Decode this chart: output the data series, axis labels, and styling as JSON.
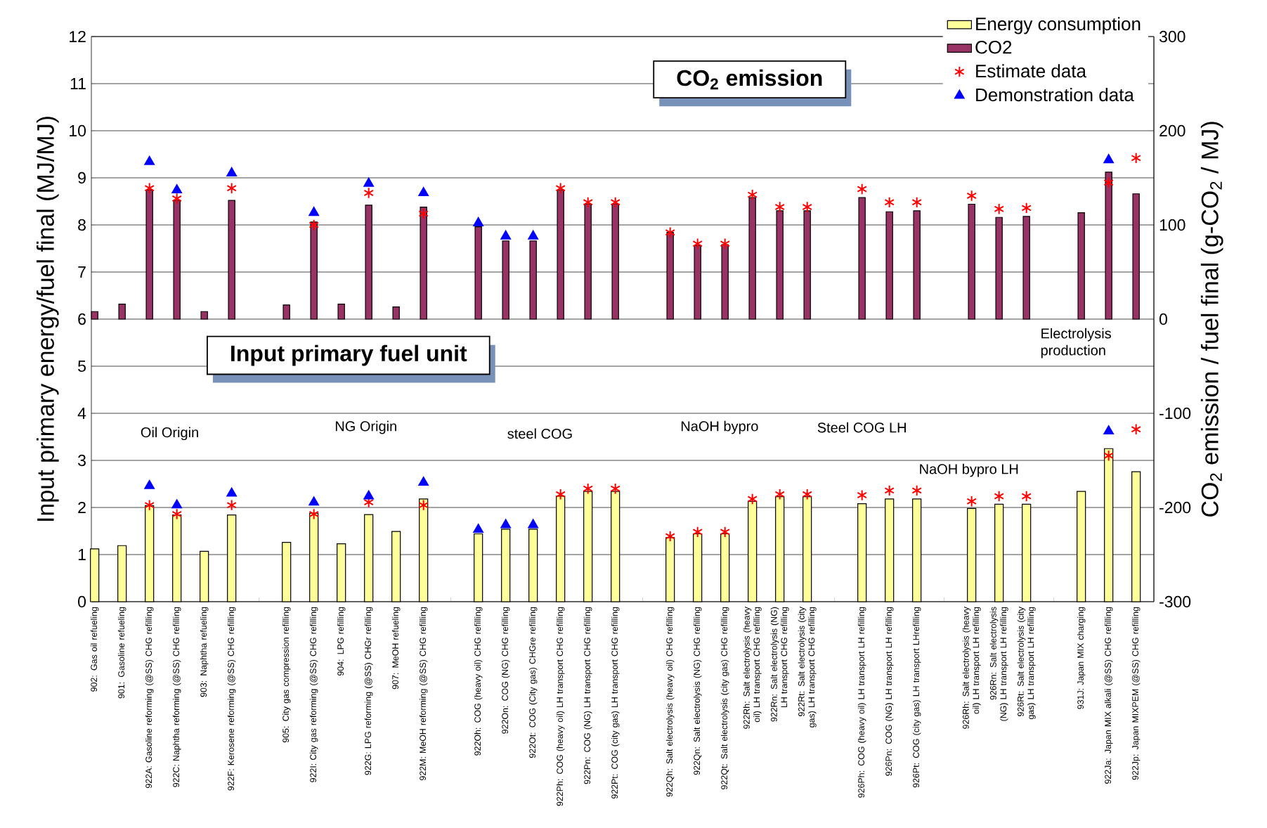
{
  "chart_data": {
    "type": "bar",
    "categories": [
      "902: Gas oil refueling",
      "901: Gasoline refueling",
      "922A: Gasoline reforming (@SS) CHG refilling",
      "922C: Naphtha reforming (@SS) CHG refilling",
      "903: Naphtha refueling",
      "922F: Kerosene reforming (@SS) CHG refilling",
      null,
      "905: City gas compression refilling",
      "922I: City gas reforming (@SS) CHG refilling",
      "904: LPG refilling",
      "922G: LPG reforming (@SS) CHGr refilling",
      "907: MeOH refueling",
      "922M: MeOH reforming (@SS) CHG refilling",
      null,
      "922Oh: COG (heavy oil) CHG refilling",
      "922On: COG (NG) CHG refilling",
      "922Ot: COG (City gas) CHGre refilling",
      "922Ph: COG (heavy oil) LH transport CHG refilling",
      "922Pn: COG (NG) LH transport CHG refilling",
      "922Pt: COG (city gas) LH transport CHG refilling",
      null,
      "922Qh: Salt electrolysis (heavy oil) CHG refilling",
      "922Qn: Salt electrolysis (NG) CHG refilling",
      "922Qt: Salt electrolysis (city gas) CHG refilling",
      "922Rh: Salt electrolysis (heavy oil) LH transport CHG refilling",
      "922Rn: Salt electrolysis (NG) LH transport CHG refilling",
      "922Rt: Salt electrolysis (city gas) LH transport CHG refilling",
      null,
      "926Ph: COG (heavy oil) LH transport LH refilling",
      "926Pn: COG (NG) LH transport LH refilling",
      "926Pt: COG (city gas) LH transport LHrefilling",
      null,
      "926Rh: Salt electrolysis (heavy oil) LH transport LH refilling",
      "926Rn: Salt electrolysis (NG) LH transport LH refilling",
      "926Rt: Salt electrolysis (city gas) LH transport LH refilling",
      null,
      "931J: Japan MIX charging",
      "922Ja: Japan MIX alkali (@SS) CHG refilling",
      "922Jp: Japan MIXPEM (@SS) CHG refilling"
    ],
    "series": [
      {
        "name": "Energy consumption",
        "color": "#ffff99",
        "values": [
          1.12,
          1.19,
          2.04,
          1.84,
          1.07,
          1.84,
          null,
          1.26,
          1.88,
          1.23,
          1.85,
          1.49,
          2.18,
          null,
          1.44,
          1.54,
          1.54,
          2.24,
          2.34,
          2.34,
          null,
          1.36,
          1.44,
          1.44,
          2.13,
          2.23,
          2.23,
          null,
          2.08,
          2.18,
          2.18,
          null,
          1.98,
          2.07,
          2.07,
          null,
          2.34,
          3.25,
          2.76
        ]
      },
      {
        "name": "CO2",
        "axis": "y2",
        "color": "#993366",
        "values": [
          8,
          16,
          137,
          126,
          8,
          126,
          null,
          15,
          103,
          16,
          121,
          13,
          119,
          null,
          98,
          83,
          83,
          137,
          122,
          122,
          null,
          92,
          78,
          79,
          129,
          115,
          115,
          null,
          129,
          114,
          115,
          null,
          122,
          108,
          109,
          null,
          113,
          156,
          133
        ]
      },
      {
        "name": "Estimate data",
        "type": "scatter",
        "marker": "cross",
        "color": "#ff0000",
        "values": [
          null,
          null,
          2.05,
          1.86,
          null,
          2.05,
          null,
          null,
          1.86,
          null,
          2.11,
          null,
          2.05,
          null,
          null,
          null,
          null,
          2.28,
          2.4,
          2.4,
          null,
          1.39,
          1.48,
          1.48,
          2.18,
          2.28,
          2.28,
          null,
          2.26,
          2.36,
          2.36,
          null,
          2.13,
          2.24,
          2.24,
          null,
          null,
          3.1,
          3.66
        ]
      },
      {
        "name": "Demonstration data",
        "type": "scatter",
        "marker": "triangle",
        "color": "#0000ff",
        "values": [
          null,
          null,
          2.46,
          2.05,
          null,
          2.3,
          null,
          null,
          2.11,
          null,
          2.24,
          null,
          2.53,
          null,
          1.53,
          1.63,
          1.63,
          null,
          null,
          null,
          null,
          null,
          null,
          null,
          null,
          null,
          null,
          null,
          null,
          null,
          null,
          null,
          null,
          null,
          null,
          null,
          null,
          3.62,
          null
        ]
      },
      {
        "type": "scatter",
        "axis": "y2",
        "marker": "cross",
        "color": "#ff0000",
        "values": [
          null,
          null,
          139,
          128,
          null,
          139,
          null,
          null,
          100,
          null,
          134,
          null,
          112,
          null,
          null,
          null,
          null,
          139,
          124,
          124,
          null,
          92,
          80,
          80,
          132,
          119,
          119,
          null,
          138,
          124,
          124,
          null,
          131,
          117,
          118,
          null,
          null,
          145,
          171
        ]
      },
      {
        "type": "scatter",
        "axis": "y2",
        "marker": "triangle",
        "color": "#0000ff",
        "values": [
          null,
          null,
          167,
          137,
          null,
          155,
          null,
          null,
          113,
          null,
          144,
          null,
          134,
          null,
          102,
          88,
          88,
          null,
          null,
          null,
          null,
          null,
          null,
          null,
          null,
          null,
          null,
          null,
          null,
          null,
          null,
          null,
          null,
          null,
          null,
          null,
          null,
          169,
          null
        ]
      }
    ],
    "ylabel": "Input primary energy/fuel final (MJ/MJ)",
    "y2label": "CO$_{2}$ emission / fuel final (g-CO$_{2}$ / MJ)",
    "ylim": [
      0,
      12
    ],
    "yticks": [
      0,
      1,
      2,
      3,
      4,
      5,
      6,
      7,
      8,
      9,
      10,
      11,
      12
    ],
    "y2lim": [
      -300,
      300
    ],
    "y2ticks": [
      -300,
      -200,
      -100,
      0,
      100,
      200,
      300
    ],
    "grid": "y",
    "legend": "top right",
    "annotations": [
      "CO$_{2}$ emission",
      "Input primary fuel unit",
      "Oil Origin",
      "NG Origin",
      "steel COG",
      "NaOH bypro",
      "Steel COG LH",
      "NaOH bypro LH",
      "Electrolysis production"
    ]
  }
}
